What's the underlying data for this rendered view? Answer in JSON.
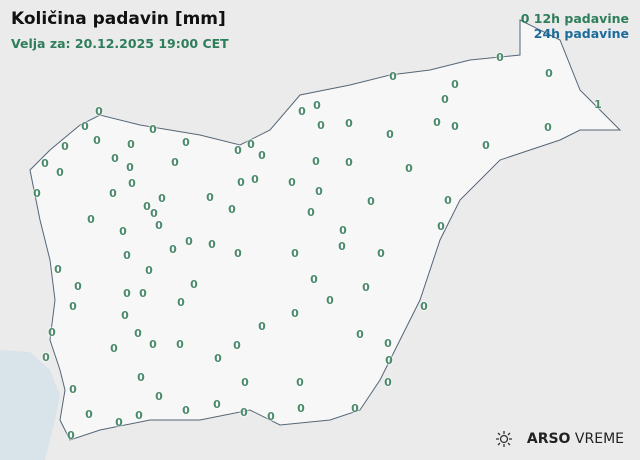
{
  "title": "Količina padavin [mm]",
  "subtitle": "Velja za: 20.12.2025 19:00 CET",
  "legend": {
    "marker": "0",
    "h12": "12h padavine",
    "h24": "24h padavine"
  },
  "colors": {
    "h12": "#2e7d5b",
    "h24": "#1d6a9a",
    "sea": "#d9e3ea",
    "land": "#f7f7f7"
  },
  "logo": {
    "brand": "ARSO",
    "product": "VREME",
    "icon": "sun-icon"
  },
  "stations": [
    "0",
    "0",
    "0",
    "1",
    "0",
    "0",
    "0",
    "0",
    "0",
    "0",
    "0",
    "0",
    "0",
    "0",
    "0",
    "0",
    "0",
    "0",
    "0",
    "0",
    "0",
    "0",
    "0",
    "0",
    "0",
    "0",
    "0",
    "0",
    "0",
    "0",
    "0",
    "0",
    "0",
    "0",
    "0",
    "0",
    "0",
    "0",
    "0",
    "0",
    "0",
    "0",
    "0",
    "0",
    "0",
    "0",
    "0",
    "0",
    "0",
    "0",
    "0",
    "0",
    "0",
    "0",
    "0",
    "0",
    "0",
    "0",
    "0",
    "0",
    "0",
    "0",
    "0",
    "0",
    "0",
    "0",
    "0",
    "0",
    "0",
    "0",
    "0",
    "0",
    "0",
    "0",
    "0",
    "0",
    "0",
    "0",
    "0",
    "0",
    "0",
    "0",
    "0",
    "0",
    "0",
    "0",
    "0",
    "0",
    "0",
    "0",
    "0",
    "0",
    "0",
    "0",
    "0",
    "0",
    "0",
    "0",
    "0",
    "0",
    "0",
    "0",
    "0",
    "0"
  ]
}
